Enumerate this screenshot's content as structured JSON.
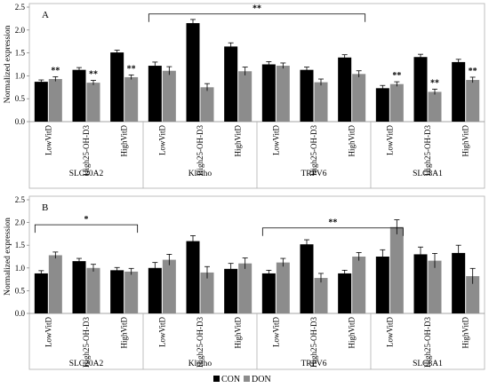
{
  "ylabel": "Normalized expression",
  "legend": {
    "items": [
      "CON",
      "DON"
    ],
    "placement": "bottom-center"
  },
  "colors": {
    "CON": "#000000",
    "DON": "#8c8c8c"
  },
  "chart_data": [
    {
      "type": "bar",
      "panel_label": "A",
      "ylabel": "Normalized expression",
      "ylim": [
        0,
        2.5
      ],
      "yticks": [
        "0.0",
        "0.5",
        "1.0",
        "1.5",
        "2.0",
        "2.5"
      ],
      "grid": false,
      "groups": [
        "SLC20A2",
        "Klotho",
        "TRPV6",
        "SLC8A1"
      ],
      "categories": [
        "LowVitD",
        "High25-OH-D3",
        "HighVitD",
        "LowVitD",
        "High25-OH-D3",
        "HighVitD",
        "LowVitD",
        "High25-OH-D3",
        "HighVitD",
        "LowVitD",
        "High25-OH-D3",
        "HighVitD"
      ],
      "series": [
        {
          "name": "CON",
          "values": [
            0.87,
            1.13,
            1.51,
            1.22,
            2.15,
            1.64,
            1.25,
            1.13,
            1.4,
            0.73,
            1.41,
            1.3
          ],
          "errors": [
            0.04,
            0.05,
            0.05,
            0.08,
            0.08,
            0.08,
            0.06,
            0.06,
            0.06,
            0.06,
            0.06,
            0.06
          ]
        },
        {
          "name": "DON",
          "values": [
            0.93,
            0.85,
            0.97,
            1.11,
            0.75,
            1.1,
            1.22,
            0.86,
            1.04,
            0.82,
            0.65,
            0.91
          ],
          "errors": [
            0.05,
            0.05,
            0.05,
            0.09,
            0.08,
            0.09,
            0.06,
            0.07,
            0.07,
            0.05,
            0.06,
            0.06
          ]
        }
      ],
      "annotations": [
        {
          "text": "**",
          "category_index": 0,
          "series": "DON"
        },
        {
          "text": "**",
          "category_index": 1,
          "series": "DON"
        },
        {
          "text": "**",
          "category_index": 2,
          "series": "DON"
        },
        {
          "text": "**",
          "category_index": 9,
          "series": "DON"
        },
        {
          "text": "**",
          "category_index": 10,
          "series": "DON"
        },
        {
          "text": "**",
          "category_index": 11,
          "series": "DON"
        }
      ],
      "brackets": [
        {
          "text": "**",
          "from_index": 3,
          "to_index": 8,
          "y": 2.35
        }
      ]
    },
    {
      "type": "bar",
      "panel_label": "B",
      "ylabel": "Normalized expression",
      "ylim": [
        0,
        2.5
      ],
      "yticks": [
        "0.0",
        "0.5",
        "1.0",
        "1.5",
        "2.0",
        "2.5"
      ],
      "grid": false,
      "groups": [
        "SLC20A2",
        "Klotho",
        "TRPV6",
        "SLC8A1"
      ],
      "categories": [
        "LowVitD",
        "High25-OH-D3",
        "HighVitD",
        "LowVitD",
        "High25-OH-D3",
        "HighVitD",
        "LowVitD",
        "High25-OH-D3",
        "HighVitD",
        "LowVitD",
        "High25-OH-D3",
        "HighVitD"
      ],
      "series": [
        {
          "name": "CON",
          "values": [
            0.88,
            1.15,
            0.95,
            1.0,
            1.59,
            0.98,
            0.88,
            1.52,
            0.88,
            1.25,
            1.3,
            1.33
          ],
          "errors": [
            0.06,
            0.06,
            0.06,
            0.12,
            0.12,
            0.12,
            0.07,
            0.1,
            0.07,
            0.15,
            0.16,
            0.17
          ]
        },
        {
          "name": "DON",
          "values": [
            1.28,
            1.0,
            0.92,
            1.18,
            0.9,
            1.1,
            1.12,
            0.78,
            1.25,
            1.9,
            1.16,
            0.82
          ],
          "errors": [
            0.07,
            0.08,
            0.07,
            0.12,
            0.13,
            0.12,
            0.09,
            0.1,
            0.09,
            0.16,
            0.16,
            0.17
          ]
        }
      ],
      "annotations": [],
      "brackets": [
        {
          "text": "*",
          "from_index": 0,
          "to_index": 2,
          "y": 1.95
        },
        {
          "text": "**",
          "from_index": 6,
          "to_index": 9,
          "y": 1.88
        }
      ]
    }
  ]
}
